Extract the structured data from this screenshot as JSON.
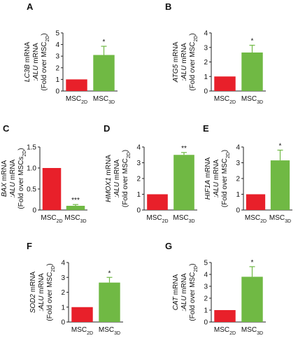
{
  "chart_data": [
    {
      "type": "bar",
      "panel": "A",
      "ylabel": [
        [
          {
            "text": "LC3B",
            "style": "italic"
          },
          {
            "text": " mRNA"
          }
        ],
        [
          {
            "text": ":ALU",
            "style": "italic"
          },
          {
            "text": " mRNA"
          }
        ],
        [
          {
            "text": "(Fold over MSC"
          },
          {
            "text": "2D",
            "style": "sub"
          },
          {
            "text": ")"
          }
        ]
      ],
      "categories": [
        {
          "text": "MSC",
          "subscript": "2D"
        },
        {
          "text": "MSC",
          "subscript": "3D"
        }
      ],
      "values": [
        1,
        3.1
      ],
      "errors": [
        null,
        0.75
      ],
      "significance": "*",
      "colors": [
        "#e8202a",
        "#70b944"
      ],
      "ylim": [
        0,
        5
      ],
      "yticks": [
        0,
        1,
        2,
        3,
        4,
        5
      ]
    },
    {
      "type": "bar",
      "panel": "B",
      "ylabel": [
        [
          {
            "text": "ATG5",
            "style": "italic"
          },
          {
            "text": " mRNA"
          }
        ],
        [
          {
            "text": ":ALU",
            "style": "italic"
          },
          {
            "text": " mRNA"
          }
        ],
        [
          {
            "text": "(Fold over MSC"
          },
          {
            "text": "2D",
            "style": "sub"
          },
          {
            "text": ")"
          }
        ]
      ],
      "categories": [
        {
          "text": "MSC",
          "subscript": "2D"
        },
        {
          "text": "MSC",
          "subscript": "3D"
        }
      ],
      "values": [
        1,
        2.65
      ],
      "errors": [
        null,
        0.5
      ],
      "significance": "*",
      "colors": [
        "#e8202a",
        "#70b944"
      ],
      "ylim": [
        0,
        4
      ],
      "yticks": [
        0,
        1,
        2,
        3,
        4
      ]
    },
    {
      "type": "bar",
      "panel": "C",
      "ylabel": [
        [
          {
            "text": "BAX",
            "style": "italic"
          },
          {
            "text": " mRNA"
          }
        ],
        [
          {
            "text": ":ALU",
            "style": "italic"
          },
          {
            "text": " mRNA"
          }
        ],
        [
          {
            "text": "(Fold over MSCs"
          },
          {
            "text": "2D",
            "style": "sub"
          },
          {
            "text": ")"
          }
        ]
      ],
      "categories": [
        {
          "text": "MSC",
          "subscript": "2D"
        },
        {
          "text": "MSC",
          "subscript": "3D"
        }
      ],
      "values": [
        1,
        0.1
      ],
      "errors": [
        null,
        0.03
      ],
      "significance": "***",
      "colors": [
        "#e8202a",
        "#70b944"
      ],
      "ylim": [
        0,
        1.5
      ],
      "yticks": [
        0,
        0.5,
        {
          "value": 1,
          "label": "1.0"
        },
        1.5
      ]
    },
    {
      "type": "bar",
      "panel": "D",
      "ylabel": [
        [
          {
            "text": "HMOX1",
            "style": "italic"
          },
          {
            "text": " mRNA"
          }
        ],
        [
          {
            "text": ":ALU",
            "style": "italic"
          },
          {
            "text": " mRNA"
          }
        ],
        [
          {
            "text": "(Fold over MSC"
          },
          {
            "text": "2D",
            "style": "sub"
          },
          {
            "text": ")"
          }
        ]
      ],
      "categories": [
        {
          "text": "MSC",
          "subscript": "2D"
        },
        {
          "text": "MSC",
          "subscript": "3D"
        }
      ],
      "values": [
        1,
        3.5
      ],
      "errors": [
        null,
        0.15
      ],
      "significance": "**",
      "colors": [
        "#e8202a",
        "#70b944"
      ],
      "ylim": [
        0,
        4
      ],
      "yticks": [
        0,
        1,
        2,
        3,
        4
      ]
    },
    {
      "type": "bar",
      "panel": "E",
      "ylabel": [
        [
          {
            "text": "HIF1A",
            "style": "italic"
          },
          {
            "text": " mRNA"
          }
        ],
        [
          {
            "text": ":ALU",
            "style": "italic"
          },
          {
            "text": " mRNA"
          }
        ],
        [
          {
            "text": "(Fold over MSC"
          },
          {
            "text": "2D",
            "style": "sub"
          },
          {
            "text": ")"
          }
        ]
      ],
      "categories": [
        {
          "text": "MSC",
          "subscript": "2D"
        },
        {
          "text": "MSC",
          "subscript": "3D"
        }
      ],
      "values": [
        1,
        3.15
      ],
      "errors": [
        null,
        0.65
      ],
      "significance": "*",
      "colors": [
        "#e8202a",
        "#70b944"
      ],
      "ylim": [
        0,
        4
      ],
      "yticks": [
        0,
        1,
        2,
        3,
        4
      ]
    },
    {
      "type": "bar",
      "panel": "F",
      "ylabel": [
        [
          {
            "text": "SOD2",
            "style": "italic"
          },
          {
            "text": " mRNA"
          }
        ],
        [
          {
            "text": ":ALU",
            "style": "italic"
          },
          {
            "text": " mRNA"
          }
        ],
        [
          {
            "text": "(Fold over MSC"
          },
          {
            "text": "2D",
            "style": "sub"
          },
          {
            "text": ")"
          }
        ]
      ],
      "categories": [
        {
          "text": "MSC",
          "subscript": "2D"
        },
        {
          "text": "MSC",
          "subscript": "3D"
        }
      ],
      "values": [
        1,
        2.65
      ],
      "errors": [
        null,
        0.35
      ],
      "significance": "*",
      "colors": [
        "#e8202a",
        "#70b944"
      ],
      "ylim": [
        0,
        4
      ],
      "yticks": [
        0,
        1,
        2,
        3,
        4
      ]
    },
    {
      "type": "bar",
      "panel": "G",
      "ylabel": [
        [
          {
            "text": "CAT",
            "style": "italic"
          },
          {
            "text": " mRNA"
          }
        ],
        [
          {
            "text": ":ALU",
            "style": "italic"
          },
          {
            "text": " mRNA"
          }
        ],
        [
          {
            "text": "(Fold over MSC"
          },
          {
            "text": "2D",
            "style": "sub"
          },
          {
            "text": ")"
          }
        ]
      ],
      "categories": [
        {
          "text": "MSC",
          "subscript": "2D"
        },
        {
          "text": "MSC",
          "subscript": "3D"
        }
      ],
      "values": [
        1,
        3.8
      ],
      "errors": [
        null,
        0.85
      ],
      "significance": "*",
      "colors": [
        "#e8202a",
        "#70b944"
      ],
      "ylim": [
        0,
        5
      ],
      "yticks": [
        0,
        1,
        2,
        3,
        4,
        5
      ]
    }
  ]
}
